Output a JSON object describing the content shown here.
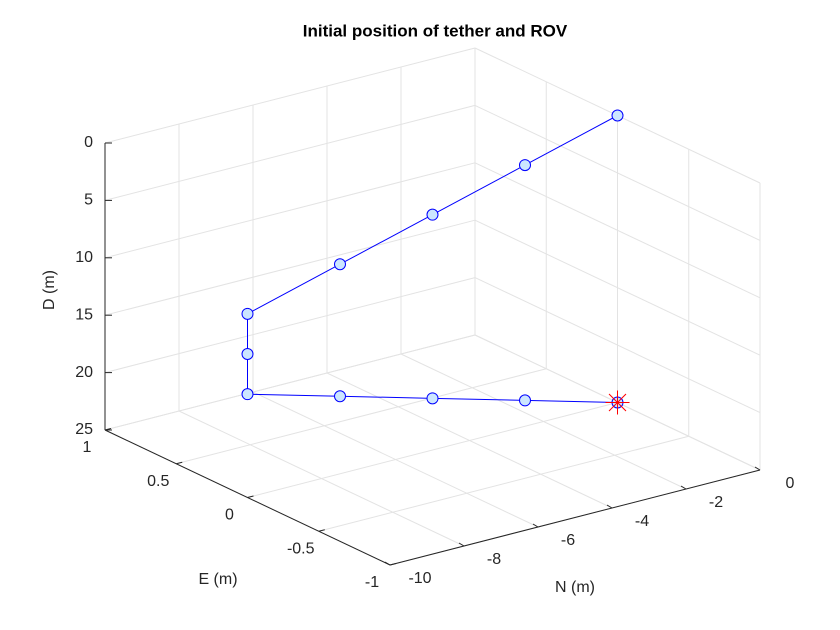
{
  "chart_data": {
    "type": "line3d",
    "title": "Initial position of tether and ROV",
    "xlabel": "N (m)",
    "ylabel": "E (m)",
    "zlabel": "D (m)",
    "xlim": [
      -10,
      0
    ],
    "ylim": [
      -1,
      1
    ],
    "zlim": [
      0,
      25
    ],
    "z_reversed": true,
    "grid": true,
    "xticks": [
      -10,
      -8,
      -6,
      -4,
      -2,
      0
    ],
    "yticks": [
      -1,
      -0.5,
      0,
      0.5,
      1
    ],
    "zticks": [
      0,
      5,
      10,
      15,
      20,
      25
    ],
    "series": [
      {
        "color": "#0000ff",
        "marker_face": "#cce6ff",
        "x": [
          0,
          -2.5,
          -5,
          -7.5,
          -10,
          -10,
          -10,
          -7.5,
          -5,
          -2.5,
          0
        ],
        "y": [
          0,
          0,
          0,
          0,
          0,
          0,
          0,
          0,
          0,
          0,
          0
        ],
        "z": [
          0,
          2.25,
          4.5,
          6.75,
          9,
          12.5,
          16,
          18.25,
          20.5,
          22.75,
          25
        ]
      }
    ],
    "rov": {
      "color": "#ff0000",
      "x": 0,
      "y": 0,
      "z": 25
    }
  }
}
